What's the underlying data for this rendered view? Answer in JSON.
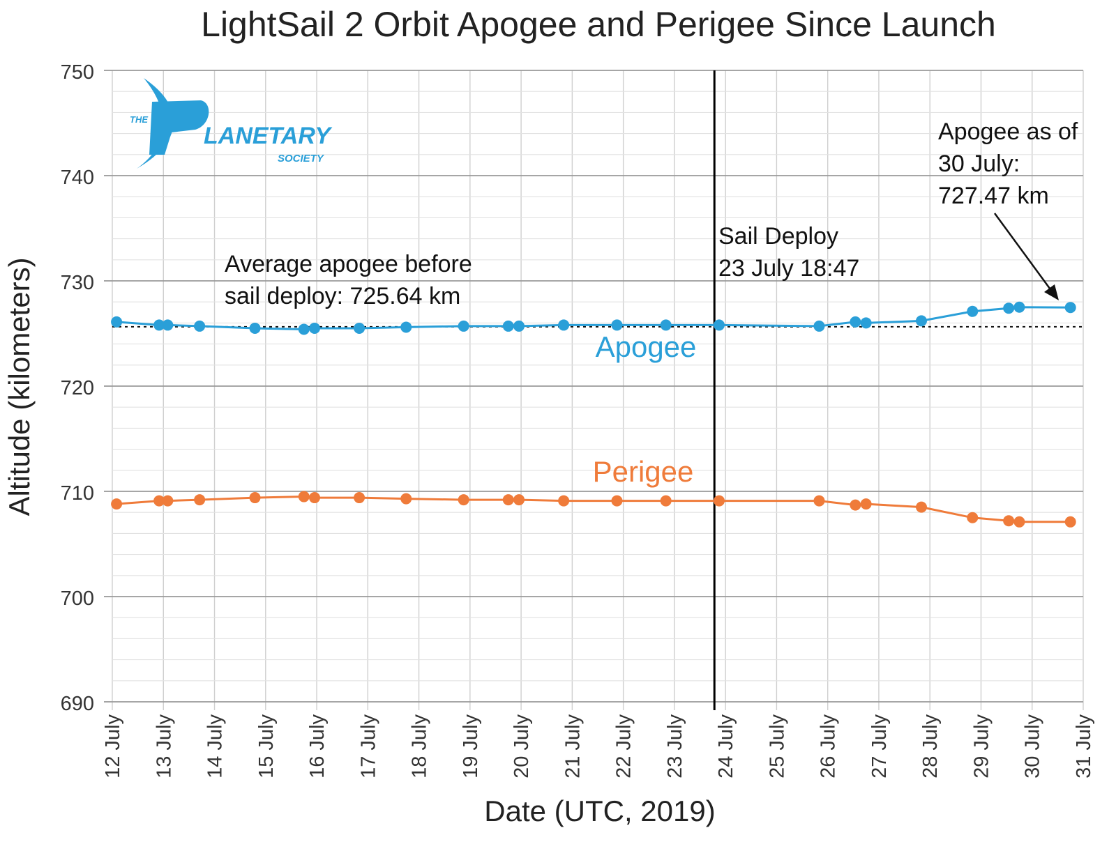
{
  "chart_data": {
    "type": "line",
    "title": "LightSail 2 Orbit Apogee and Perigee Since Launch",
    "xlabel": "Date (UTC, 2019)",
    "ylabel": "Altitude (kilometers)",
    "ylim": [
      690,
      750
    ],
    "xlim": [
      "2019-07-12",
      "2019-07-31"
    ],
    "x_ticks": [
      "12 July",
      "13 July",
      "14 July",
      "15 July",
      "16 July",
      "17 July",
      "18 July",
      "19 July",
      "20 July",
      "21 July",
      "22 July",
      "23 July",
      "24 July",
      "25 July",
      "26 July",
      "27 July",
      "28 July",
      "29 July",
      "30 July",
      "31 July"
    ],
    "y_ticks": [
      "690",
      "700",
      "710",
      "720",
      "730",
      "740",
      "750"
    ],
    "grid": true,
    "series": [
      {
        "name": "Apogee",
        "color": "#2a9fd8",
        "points": [
          [
            "2019-07-12 02:00",
            726.1
          ],
          [
            "2019-07-12 22:00",
            725.8
          ],
          [
            "2019-07-13 02:00",
            725.8
          ],
          [
            "2019-07-13 17:00",
            725.7
          ],
          [
            "2019-07-14 19:00",
            725.5
          ],
          [
            "2019-07-15 18:00",
            725.4
          ],
          [
            "2019-07-15 23:00",
            725.5
          ],
          [
            "2019-07-16 20:00",
            725.5
          ],
          [
            "2019-07-17 18:00",
            725.6
          ],
          [
            "2019-07-18 21:00",
            725.7
          ],
          [
            "2019-07-19 18:00",
            725.7
          ],
          [
            "2019-07-19 23:00",
            725.7
          ],
          [
            "2019-07-20 20:00",
            725.8
          ],
          [
            "2019-07-21 21:00",
            725.8
          ],
          [
            "2019-07-22 20:00",
            725.8
          ],
          [
            "2019-07-23 21:00",
            725.8
          ],
          [
            "2019-07-25 20:00",
            725.7
          ],
          [
            "2019-07-26 13:00",
            726.1
          ],
          [
            "2019-07-26 18:00",
            726.0
          ],
          [
            "2019-07-27 20:00",
            726.2
          ],
          [
            "2019-07-28 20:00",
            727.1
          ],
          [
            "2019-07-29 13:00",
            727.4
          ],
          [
            "2019-07-29 18:00",
            727.5
          ],
          [
            "2019-07-30 18:00",
            727.47
          ]
        ]
      },
      {
        "name": "Perigee",
        "color": "#ef7b3a",
        "points": [
          [
            "2019-07-12 02:00",
            708.8
          ],
          [
            "2019-07-12 22:00",
            709.1
          ],
          [
            "2019-07-13 02:00",
            709.1
          ],
          [
            "2019-07-13 17:00",
            709.2
          ],
          [
            "2019-07-14 19:00",
            709.4
          ],
          [
            "2019-07-15 18:00",
            709.5
          ],
          [
            "2019-07-15 23:00",
            709.4
          ],
          [
            "2019-07-16 20:00",
            709.4
          ],
          [
            "2019-07-17 18:00",
            709.3
          ],
          [
            "2019-07-18 21:00",
            709.2
          ],
          [
            "2019-07-19 18:00",
            709.2
          ],
          [
            "2019-07-19 23:00",
            709.2
          ],
          [
            "2019-07-20 20:00",
            709.1
          ],
          [
            "2019-07-21 21:00",
            709.1
          ],
          [
            "2019-07-22 20:00",
            709.1
          ],
          [
            "2019-07-23 21:00",
            709.1
          ],
          [
            "2019-07-25 20:00",
            709.1
          ],
          [
            "2019-07-26 13:00",
            708.7
          ],
          [
            "2019-07-26 18:00",
            708.8
          ],
          [
            "2019-07-27 20:00",
            708.5
          ],
          [
            "2019-07-28 20:00",
            707.5
          ],
          [
            "2019-07-29 13:00",
            707.2
          ],
          [
            "2019-07-29 18:00",
            707.1
          ],
          [
            "2019-07-30 18:00",
            707.1
          ]
        ]
      }
    ],
    "reference_lines": {
      "average_apogee": 725.64,
      "sail_deploy": "2019-07-23 18:47"
    },
    "annotations": {
      "average": [
        "Average apogee before",
        "sail deploy: 725.64 km"
      ],
      "sail_deploy": [
        "Sail Deploy",
        "23 July 18:47"
      ],
      "latest_apogee": [
        "Apogee as of",
        "30 July:",
        "727.47 km"
      ]
    },
    "logo": {
      "the": "THE",
      "planetary": "LANETARY",
      "society": "SOCIETY"
    }
  }
}
